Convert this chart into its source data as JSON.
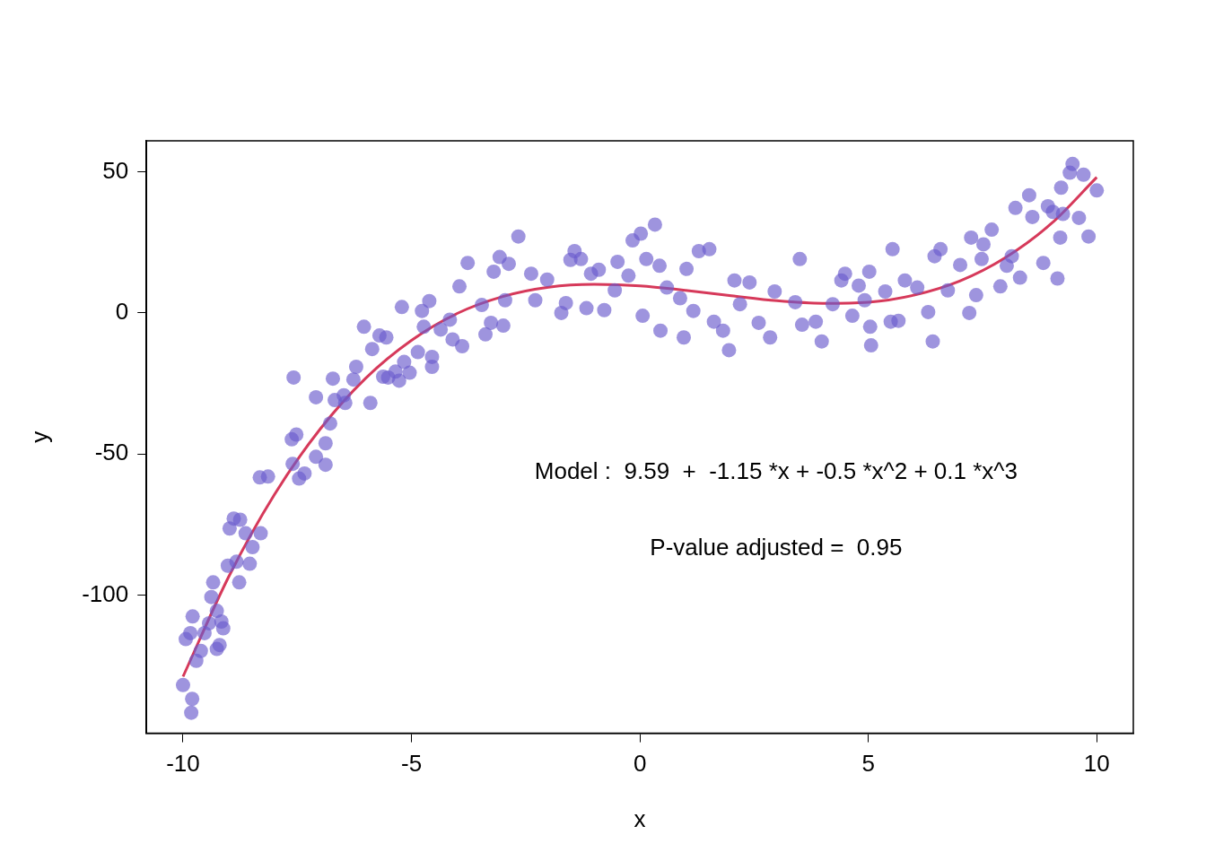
{
  "chart_data": {
    "type": "scatter",
    "xlabel": "x",
    "ylabel": "y",
    "xlim": [
      -10.8,
      10.8
    ],
    "xticks": [
      -10,
      -5,
      0,
      5,
      10
    ],
    "ylim": [
      -149,
      61
    ],
    "yticks": [
      -100,
      -50,
      0,
      50
    ],
    "grid": false,
    "legend": false,
    "marker": "circle",
    "annotations": [
      "Model :  9.59  +  -1.15 *x + -0.5 *x^2 + 0.1 *x^3",
      "P-value adjusted =  0.95"
    ],
    "series": [
      {
        "color": "#6a5acd",
        "x": [
          -10,
          -9.82,
          -9.8,
          -9.94,
          -9.84,
          -9.79,
          -9.71,
          -9.61,
          -9.53,
          -9.43,
          -9.38,
          -9.34,
          -9.26,
          -9.2,
          -9.16,
          -9.12,
          -9.26,
          -9.02,
          -8.98,
          -8.89,
          -8.75,
          -8.83,
          -8.77,
          -8.63,
          -8.54,
          -8.48,
          -8.3,
          -8.32,
          -8.14,
          -7.58,
          -7.62,
          -7.52,
          -7.6,
          -7.46,
          -7.34,
          -7.09,
          -7.09,
          -6.88,
          -6.88,
          -6.78,
          -6.72,
          -6.68,
          -6.48,
          -6.45,
          -6.27,
          -6.21,
          -6.04,
          -5.9,
          -5.86,
          -5.7,
          -5.55,
          -5.62,
          -5.51,
          -5.35,
          -5.27,
          -5.21,
          -5.16,
          -5.04,
          -4.86,
          -4.77,
          -4.73,
          -4.61,
          -4.55,
          -4.55,
          -4.36,
          -4.16,
          -4.1,
          -3.95,
          -3.89,
          -3.77,
          -3.46,
          -3.38,
          -3.26,
          -3.2,
          -3.07,
          -2.99,
          -2.95,
          -2.87,
          -2.66,
          -2.38,
          -2.29,
          -2.03,
          -1.72,
          -1.62,
          -1.52,
          -1.43,
          -1.29,
          -1.17,
          -1.07,
          -0.9,
          -0.78,
          -0.55,
          -0.49,
          -0.25,
          -0.16,
          0.02,
          0.06,
          0.14,
          0.33,
          0.43,
          0.45,
          0.59,
          0.88,
          0.96,
          1.02,
          1.17,
          1.29,
          1.52,
          1.62,
          1.82,
          1.95,
          2.07,
          2.19,
          2.4,
          2.6,
          2.85,
          2.95,
          3.5,
          3.4,
          3.55,
          3.85,
          3.98,
          4.22,
          4.41,
          4.49,
          4.65,
          4.79,
          4.92,
          5.02,
          5.04,
          5.06,
          5.37,
          5.49,
          5.53,
          5.66,
          5.8,
          6.07,
          6.31,
          6.41,
          6.45,
          6.58,
          6.74,
          7.01,
          7.21,
          7.25,
          7.36,
          7.48,
          7.52,
          7.7,
          7.89,
          8.03,
          8.14,
          8.22,
          8.32,
          8.52,
          8.59,
          8.83,
          8.93,
          9.04,
          9.14,
          9.2,
          9.26,
          9.22,
          9.41,
          9.47,
          9.61,
          9.71,
          9.82,
          10
        ],
        "values": [
          -131.9,
          -141.7,
          -136.8,
          -115.6,
          -113.5,
          -107.6,
          -123.3,
          -119.8,
          -113.5,
          -110,
          -100.7,
          -95.5,
          -119.1,
          -117.7,
          -109.4,
          -111.8,
          -105.6,
          -89.6,
          -76.4,
          -72.9,
          -73.3,
          -88.2,
          -95.5,
          -78.1,
          -88.9,
          -83,
          -78.1,
          -58.3,
          -58,
          -22.9,
          -44.8,
          -43.1,
          -53.5,
          -58.7,
          -56.9,
          -29.9,
          -51,
          -46.2,
          -53.8,
          -39.2,
          -23.3,
          -30.9,
          -29.2,
          -31.9,
          -23.6,
          -19.1,
          -4.9,
          -31.9,
          -12.8,
          -8,
          -8.7,
          -22.6,
          -22.9,
          -20.8,
          -24,
          2.1,
          -17.4,
          -21.2,
          -13.9,
          0.7,
          -4.9,
          4.2,
          -15.6,
          -19.1,
          -5.9,
          -2.4,
          -9.4,
          9.4,
          -11.8,
          17.7,
          2.8,
          -7.6,
          -3.5,
          14.6,
          19.8,
          -4.5,
          4.5,
          17.4,
          27.1,
          13.9,
          4.5,
          11.8,
          0,
          3.5,
          18.8,
          21.9,
          19.1,
          1.7,
          13.9,
          15.3,
          1,
          8,
          18.1,
          13.2,
          25.7,
          28.1,
          -1,
          19.1,
          31.3,
          16.7,
          -6.3,
          9,
          5.2,
          -8.7,
          15.6,
          0.7,
          21.9,
          22.6,
          -3.1,
          -6.3,
          -13.2,
          11.5,
          3.1,
          10.8,
          -3.5,
          -8.7,
          7.6,
          19.1,
          3.8,
          -4.2,
          -3.1,
          -10.1,
          3.1,
          11.5,
          13.9,
          -1,
          9.7,
          4.5,
          14.6,
          -4.9,
          -11.5,
          7.6,
          -3.1,
          22.6,
          -2.8,
          11.5,
          9,
          0.3,
          -10.1,
          20.1,
          22.6,
          8,
          17,
          0,
          26.7,
          6.3,
          19.1,
          24.3,
          29.5,
          9.4,
          16.7,
          20.1,
          37.2,
          12.5,
          41.7,
          34,
          17.7,
          37.8,
          35.8,
          12.2,
          26.7,
          35.1,
          44.4,
          49.7,
          52.8,
          33.7,
          49,
          27.1,
          43.4
        ]
      },
      {
        "type": "line",
        "color": "#d6395a",
        "marker": "none",
        "line_style": "solid",
        "x": [
          -10,
          -9,
          -8,
          -7,
          -6,
          -5,
          -4,
          -3,
          -2,
          -1,
          0,
          1,
          2,
          3,
          4,
          5,
          6,
          7,
          8,
          9,
          10
        ],
        "values": [
          -128.9,
          -93.5,
          -64.4,
          -41.2,
          -23.1,
          -9.7,
          -0.2,
          5.8,
          9.1,
          10.1,
          9.6,
          8,
          6.1,
          4.3,
          3.4,
          3.8,
          6.3,
          11.3,
          19.6,
          31.6,
          48.1
        ]
      }
    ]
  }
}
